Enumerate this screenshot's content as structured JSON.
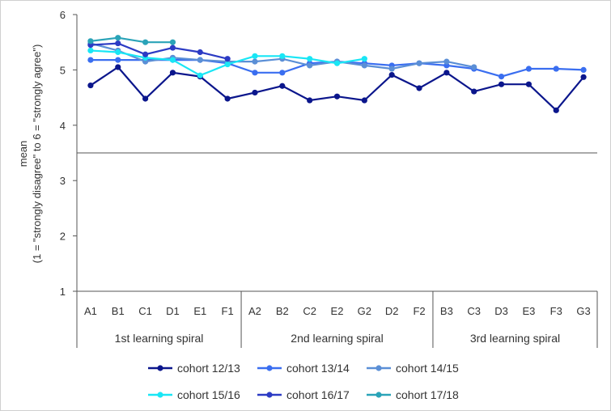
{
  "chart_data": {
    "type": "line",
    "ylabel_line1": "mean",
    "ylabel_line2": "(1 = \"strongly disagree\" to 6 = \"strongly agree\")",
    "ylim": [
      1,
      6
    ],
    "yticks": [
      1,
      2,
      3,
      4,
      5,
      6
    ],
    "reference_line": 3.5,
    "categories": [
      "A1",
      "B1",
      "C1",
      "D1",
      "E1",
      "F1",
      "A2",
      "B2",
      "C2",
      "E2",
      "G2",
      "D2",
      "F2",
      "B3",
      "C3",
      "D3",
      "E3",
      "F3",
      "G3"
    ],
    "groups": [
      {
        "label": "1st learning spiral",
        "span": 6
      },
      {
        "label": "2nd learning spiral",
        "span": 7
      },
      {
        "label": "3rd learning spiral",
        "span": 6
      }
    ],
    "legend_position": "bottom",
    "series": [
      {
        "name": "cohort 12/13",
        "color": "#0b168c",
        "values": [
          4.72,
          5.05,
          4.48,
          4.95,
          4.88,
          4.48,
          4.59,
          4.71,
          4.45,
          4.52,
          4.45,
          4.91,
          4.67,
          4.95,
          4.61,
          4.74,
          4.74,
          4.27,
          4.87
        ]
      },
      {
        "name": "cohort 13/14",
        "color": "#3a6ef0",
        "values": [
          5.18,
          5.18,
          5.18,
          5.18,
          5.18,
          5.12,
          4.95,
          4.95,
          5.12,
          5.15,
          5.12,
          5.08,
          5.12,
          5.08,
          5.02,
          4.88,
          5.02,
          5.02,
          5.0
        ]
      },
      {
        "name": "cohort 14/15",
        "color": "#5b8fd6",
        "values": [
          5.48,
          5.35,
          5.15,
          5.22,
          5.18,
          5.15,
          5.15,
          5.2,
          5.08,
          5.15,
          5.08,
          5.02,
          5.12,
          5.15,
          5.05,
          null,
          null,
          null,
          null
        ]
      },
      {
        "name": "cohort 15/16",
        "color": "#19e6f5",
        "values": [
          5.35,
          5.32,
          5.22,
          5.18,
          4.9,
          5.1,
          5.25,
          5.25,
          5.2,
          5.12,
          5.2,
          null,
          null,
          null,
          null,
          null,
          null,
          null,
          null
        ]
      },
      {
        "name": "cohort 16/17",
        "color": "#2c3bc4",
        "values": [
          5.45,
          5.48,
          5.28,
          5.4,
          5.32,
          5.2,
          null,
          null,
          null,
          null,
          null,
          null,
          null,
          null,
          null,
          null,
          null,
          null,
          null
        ]
      },
      {
        "name": "cohort 17/18",
        "color": "#2aa3b8",
        "values": [
          5.52,
          5.58,
          5.5,
          5.5,
          null,
          null,
          null,
          null,
          null,
          null,
          null,
          null,
          null,
          null,
          null,
          null,
          null,
          null,
          null
        ]
      }
    ]
  }
}
